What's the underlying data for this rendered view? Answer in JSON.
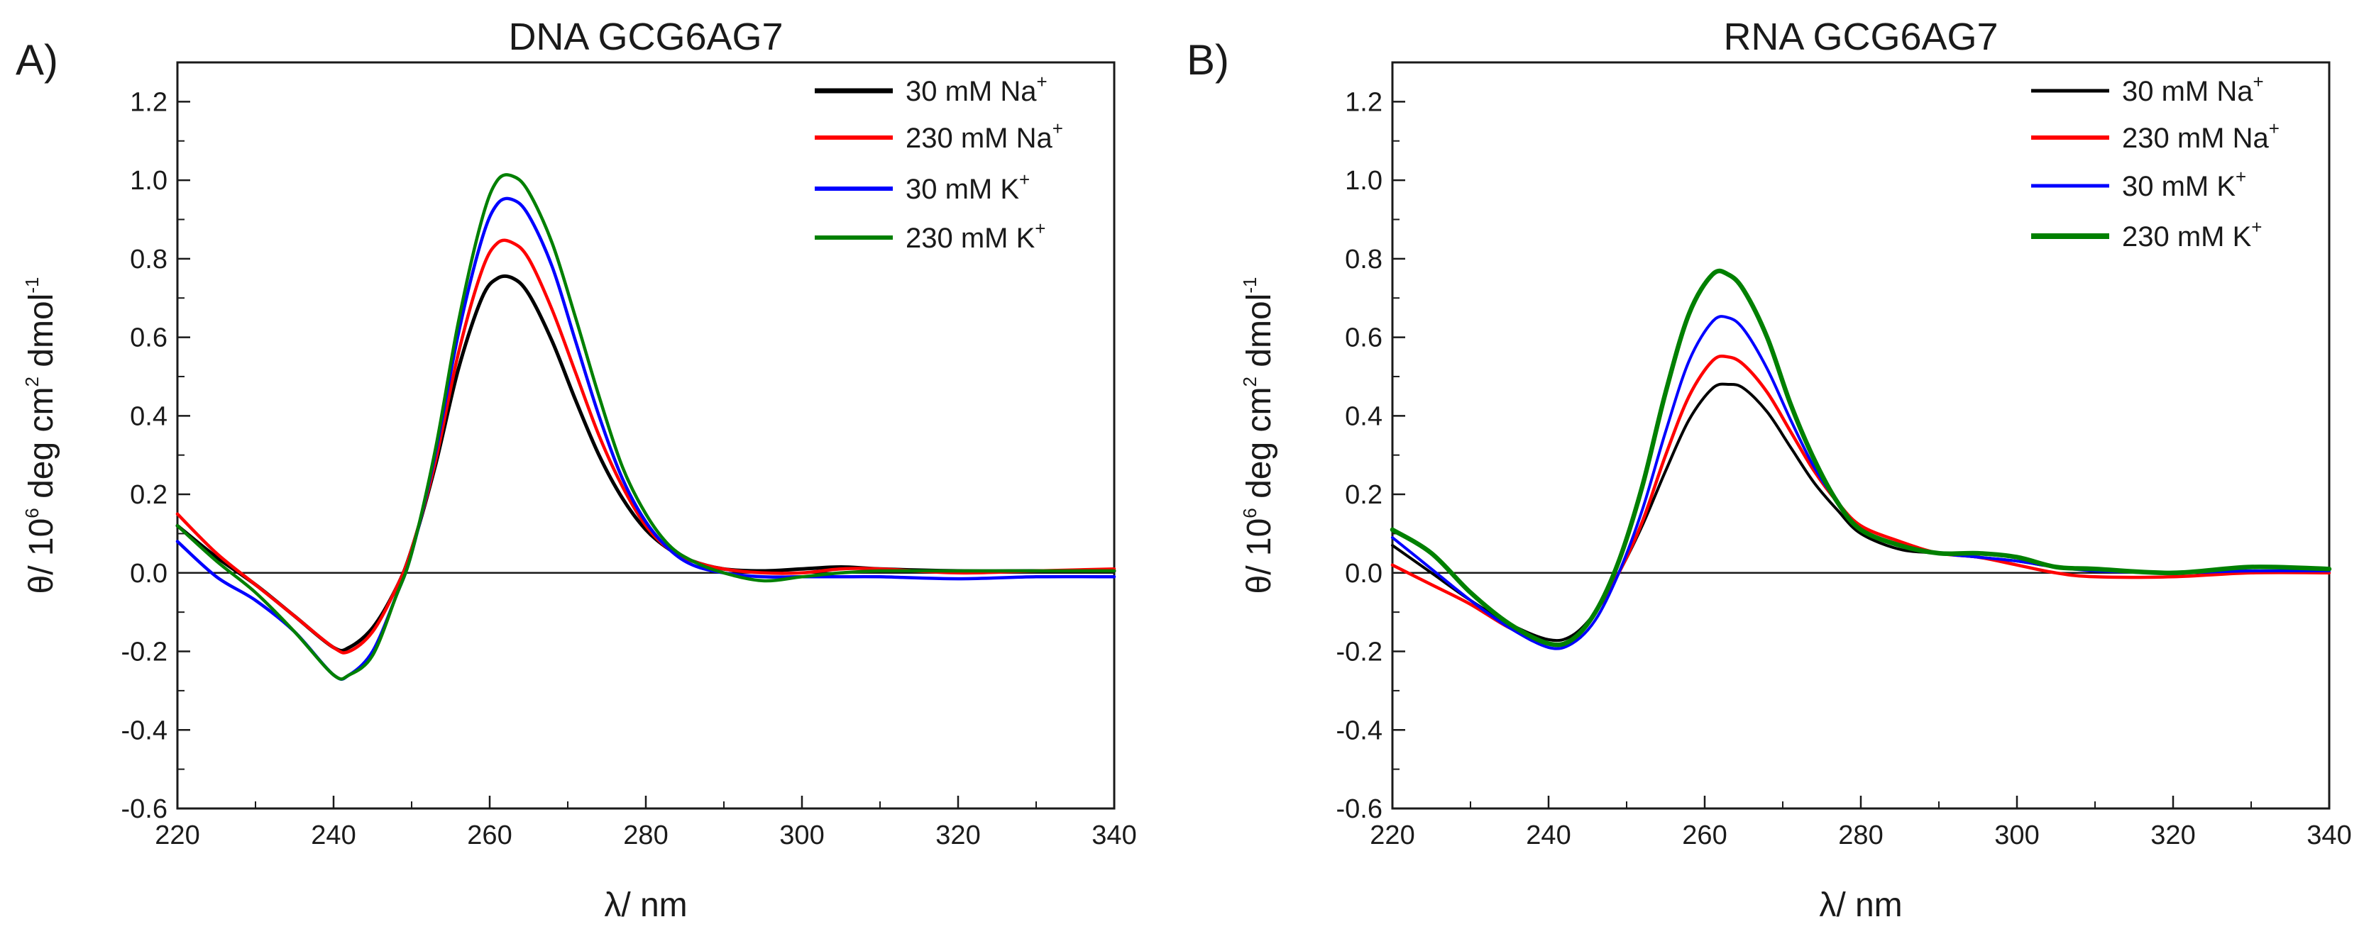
{
  "chart_data": [
    {
      "panel_label": "A)",
      "type": "line",
      "title": "DNA GCG6AG7",
      "xlabel": "λ/ nm",
      "ylabel": {
        "base": "θ/ 10",
        "sup1": "6",
        "mid": " deg cm",
        "sup2": "2",
        "tail": " dmol",
        "sup3": "-1"
      },
      "xlim": [
        220,
        340
      ],
      "ylim": [
        -0.6,
        1.3
      ],
      "xticks": [
        220,
        240,
        260,
        280,
        300,
        320,
        340
      ],
      "yticks": [
        -0.6,
        -0.4,
        -0.2,
        0.0,
        0.2,
        0.4,
        0.6,
        0.8,
        1.0,
        1.2
      ],
      "ytick_labels": [
        "-0.6",
        "-0.4",
        "-0.2",
        "0.0",
        "0.2",
        "0.4",
        "0.6",
        "0.8",
        "1.0",
        "1.2"
      ],
      "zero_line": true,
      "legend_position": "top-right",
      "series": [
        {
          "name": "30 mM Na",
          "ion_sup": "+",
          "color": "#000000",
          "x": [
            220,
            225,
            230,
            235,
            240,
            242,
            245,
            248,
            250,
            253,
            256,
            259,
            261,
            263,
            265,
            268,
            271,
            274,
            277,
            280,
            283,
            286,
            290,
            295,
            300,
            305,
            310,
            320,
            330,
            340
          ],
          "y": [
            0.12,
            0.04,
            -0.03,
            -0.11,
            -0.19,
            -0.19,
            -0.14,
            -0.04,
            0.06,
            0.27,
            0.52,
            0.7,
            0.75,
            0.75,
            0.71,
            0.59,
            0.44,
            0.3,
            0.19,
            0.11,
            0.06,
            0.03,
            0.01,
            0.005,
            0.01,
            0.015,
            0.01,
            0.005,
            0.005,
            0.005
          ]
        },
        {
          "name": "230 mM Na",
          "ion_sup": "+",
          "color": "#ff0000",
          "x": [
            220,
            225,
            230,
            235,
            240,
            242,
            245,
            248,
            250,
            253,
            256,
            259,
            261,
            263,
            265,
            268,
            271,
            274,
            277,
            280,
            283,
            286,
            290,
            295,
            300,
            305,
            310,
            320,
            330,
            340
          ],
          "y": [
            0.15,
            0.05,
            -0.03,
            -0.11,
            -0.19,
            -0.2,
            -0.15,
            -0.04,
            0.06,
            0.28,
            0.56,
            0.77,
            0.84,
            0.84,
            0.8,
            0.67,
            0.51,
            0.35,
            0.22,
            0.12,
            0.06,
            0.03,
            0.01,
            0.0,
            0.0,
            0.01,
            0.01,
            0.0,
            0.005,
            0.01
          ]
        },
        {
          "name": "30 mM K",
          "ion_sup": "+",
          "color": "#0000ff",
          "x": [
            220,
            225,
            230,
            235,
            240,
            242,
            245,
            248,
            250,
            253,
            256,
            259,
            261,
            263,
            265,
            268,
            271,
            274,
            277,
            280,
            283,
            286,
            290,
            295,
            300,
            305,
            310,
            320,
            330,
            340
          ],
          "y": [
            0.08,
            -0.01,
            -0.07,
            -0.15,
            -0.26,
            -0.26,
            -0.2,
            -0.06,
            0.05,
            0.3,
            0.61,
            0.85,
            0.94,
            0.95,
            0.91,
            0.78,
            0.59,
            0.4,
            0.24,
            0.13,
            0.06,
            0.02,
            0.0,
            -0.01,
            -0.01,
            -0.01,
            -0.01,
            -0.015,
            -0.01,
            -0.01
          ]
        },
        {
          "name": "230 mM K",
          "ion_sup": "+",
          "color": "#008000",
          "x": [
            220,
            225,
            230,
            235,
            240,
            242,
            245,
            248,
            250,
            253,
            256,
            259,
            261,
            263,
            265,
            268,
            271,
            274,
            277,
            280,
            283,
            286,
            290,
            295,
            300,
            305,
            310,
            320,
            330,
            340
          ],
          "y": [
            0.12,
            0.03,
            -0.05,
            -0.15,
            -0.26,
            -0.26,
            -0.21,
            -0.06,
            0.05,
            0.31,
            0.64,
            0.9,
            1.0,
            1.01,
            0.97,
            0.84,
            0.65,
            0.45,
            0.27,
            0.15,
            0.07,
            0.03,
            0.0,
            -0.02,
            -0.01,
            0.0,
            0.005,
            0.005,
            0.005,
            0.005
          ]
        }
      ]
    },
    {
      "panel_label": "B)",
      "type": "line",
      "title": "RNA GCG6AG7",
      "xlabel": "λ/ nm",
      "ylabel": {
        "base": "θ/ 10",
        "sup1": "6",
        "mid": " deg cm",
        "sup2": "2",
        "tail": " dmol",
        "sup3": "-1"
      },
      "xlim": [
        220,
        340
      ],
      "ylim": [
        -0.6,
        1.3
      ],
      "xticks": [
        220,
        240,
        260,
        280,
        300,
        320,
        340
      ],
      "yticks": [
        -0.6,
        -0.4,
        -0.2,
        0.0,
        0.2,
        0.4,
        0.6,
        0.8,
        1.0,
        1.2
      ],
      "ytick_labels": [
        "-0.6",
        "-0.4",
        "-0.2",
        "0.0",
        "0.2",
        "0.4",
        "0.6",
        "0.8",
        "1.0",
        "1.2"
      ],
      "zero_line": true,
      "legend_position": "top-right",
      "series": [
        {
          "name": "30 mM Na",
          "ion_sup": "+",
          "color": "#000000",
          "x": [
            220,
            225,
            230,
            235,
            240,
            243,
            246,
            249,
            252,
            255,
            258,
            261,
            263,
            265,
            268,
            271,
            274,
            277,
            280,
            285,
            290,
            295,
            300,
            305,
            310,
            320,
            330,
            340
          ],
          "y": [
            0.07,
            0.0,
            -0.07,
            -0.13,
            -0.17,
            -0.16,
            -0.1,
            0.0,
            0.12,
            0.26,
            0.39,
            0.47,
            0.48,
            0.47,
            0.41,
            0.32,
            0.23,
            0.16,
            0.1,
            0.06,
            0.05,
            0.04,
            0.03,
            0.015,
            0.01,
            0.0,
            0.005,
            0.005
          ]
        },
        {
          "name": "230 mM Na",
          "ion_sup": "+",
          "color": "#ff0000",
          "x": [
            220,
            225,
            230,
            235,
            240,
            243,
            246,
            249,
            252,
            255,
            258,
            261,
            263,
            265,
            268,
            271,
            274,
            277,
            280,
            285,
            290,
            295,
            300,
            305,
            310,
            320,
            330,
            340
          ],
          "y": [
            0.02,
            -0.03,
            -0.08,
            -0.14,
            -0.18,
            -0.17,
            -0.1,
            0.0,
            0.13,
            0.3,
            0.45,
            0.54,
            0.55,
            0.53,
            0.46,
            0.36,
            0.26,
            0.18,
            0.12,
            0.08,
            0.05,
            0.04,
            0.02,
            0.0,
            -0.01,
            -0.01,
            0.0,
            0.0
          ]
        },
        {
          "name": "30 mM K",
          "ion_sup": "+",
          "color": "#0000ff",
          "x": [
            220,
            225,
            230,
            235,
            240,
            243,
            246,
            249,
            252,
            255,
            258,
            261,
            263,
            265,
            268,
            271,
            274,
            277,
            280,
            285,
            290,
            295,
            300,
            305,
            310,
            320,
            330,
            340
          ],
          "y": [
            0.09,
            0.01,
            -0.07,
            -0.14,
            -0.19,
            -0.18,
            -0.12,
            0.0,
            0.16,
            0.36,
            0.54,
            0.64,
            0.65,
            0.62,
            0.52,
            0.39,
            0.27,
            0.18,
            0.11,
            0.07,
            0.05,
            0.04,
            0.03,
            0.015,
            0.005,
            0.0,
            0.005,
            0.005
          ]
        },
        {
          "name": "230 mM K",
          "ion_sup": "+",
          "color": "#008000",
          "x": [
            220,
            225,
            230,
            235,
            240,
            243,
            246,
            249,
            252,
            255,
            258,
            261,
            263,
            265,
            268,
            271,
            274,
            277,
            280,
            285,
            290,
            295,
            300,
            305,
            310,
            320,
            330,
            340
          ],
          "y": [
            0.11,
            0.05,
            -0.05,
            -0.13,
            -0.18,
            -0.17,
            -0.1,
            0.03,
            0.22,
            0.46,
            0.66,
            0.76,
            0.76,
            0.72,
            0.6,
            0.43,
            0.29,
            0.18,
            0.11,
            0.07,
            0.05,
            0.05,
            0.04,
            0.015,
            0.01,
            0.0,
            0.015,
            0.01
          ]
        }
      ]
    }
  ]
}
